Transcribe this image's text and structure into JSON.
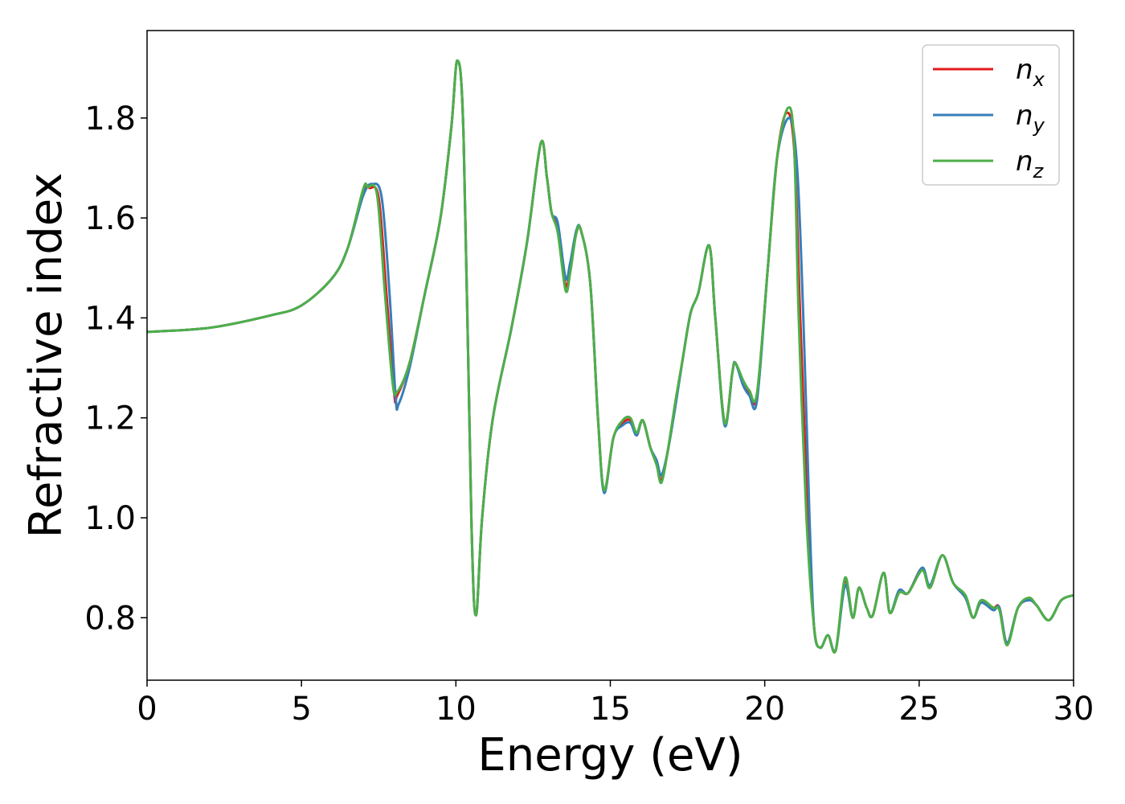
{
  "chart_data": {
    "type": "line",
    "title": "",
    "xlabel": "Energy (eV)",
    "ylabel": "Refractive index",
    "xlim": [
      0,
      30
    ],
    "ylim": [
      0.675,
      1.975
    ],
    "xticks": [
      0,
      5,
      10,
      15,
      20,
      25,
      30
    ],
    "xtick_labels": [
      "0",
      "5",
      "10",
      "15",
      "20",
      "25",
      "30"
    ],
    "yticks": [
      0.8,
      1.0,
      1.2,
      1.4,
      1.6,
      1.8
    ],
    "ytick_labels": [
      "0.8",
      "1.0",
      "1.2",
      "1.4",
      "1.6",
      "1.8"
    ],
    "grid": false,
    "legend_position": "top-right",
    "series": [
      {
        "name": "n_x",
        "label_main": "n",
        "label_sub": "x",
        "color": "#e41a1c",
        "points": [
          [
            0,
            1.372
          ],
          [
            2,
            1.38
          ],
          [
            4,
            1.405
          ],
          [
            5,
            1.425
          ],
          [
            6,
            1.48
          ],
          [
            6.5,
            1.54
          ],
          [
            7,
            1.655
          ],
          [
            7.2,
            1.66
          ],
          [
            7.5,
            1.64
          ],
          [
            7.75,
            1.45
          ],
          [
            8,
            1.25
          ],
          [
            8.1,
            1.245
          ],
          [
            8.5,
            1.31
          ],
          [
            9,
            1.45
          ],
          [
            9.5,
            1.6
          ],
          [
            9.85,
            1.78
          ],
          [
            10.05,
            1.915
          ],
          [
            10.25,
            1.76
          ],
          [
            10.5,
            1.0
          ],
          [
            10.65,
            0.805
          ],
          [
            10.85,
            1.0
          ],
          [
            11.2,
            1.2
          ],
          [
            11.8,
            1.38
          ],
          [
            12.3,
            1.55
          ],
          [
            12.75,
            1.75
          ],
          [
            12.95,
            1.68
          ],
          [
            13.1,
            1.61
          ],
          [
            13.3,
            1.58
          ],
          [
            13.55,
            1.465
          ],
          [
            13.7,
            1.5
          ],
          [
            13.9,
            1.57
          ],
          [
            14.05,
            1.575
          ],
          [
            14.35,
            1.47
          ],
          [
            14.6,
            1.2
          ],
          [
            14.8,
            1.055
          ],
          [
            15.1,
            1.16
          ],
          [
            15.4,
            1.19
          ],
          [
            15.65,
            1.195
          ],
          [
            15.85,
            1.165
          ],
          [
            16.05,
            1.195
          ],
          [
            16.3,
            1.14
          ],
          [
            16.5,
            1.11
          ],
          [
            16.65,
            1.075
          ],
          [
            16.85,
            1.13
          ],
          [
            17.1,
            1.225
          ],
          [
            17.35,
            1.32
          ],
          [
            17.6,
            1.41
          ],
          [
            17.85,
            1.45
          ],
          [
            18.2,
            1.545
          ],
          [
            18.4,
            1.4
          ],
          [
            18.7,
            1.19
          ],
          [
            18.95,
            1.29
          ],
          [
            19.05,
            1.31
          ],
          [
            19.3,
            1.27
          ],
          [
            19.5,
            1.25
          ],
          [
            19.75,
            1.245
          ],
          [
            20.1,
            1.5
          ],
          [
            20.4,
            1.72
          ],
          [
            20.7,
            1.81
          ],
          [
            20.95,
            1.74
          ],
          [
            21.15,
            1.4
          ],
          [
            21.4,
            1.0
          ],
          [
            21.6,
            0.78
          ],
          [
            21.8,
            0.74
          ],
          [
            22.05,
            0.765
          ],
          [
            22.3,
            0.735
          ],
          [
            22.6,
            0.875
          ],
          [
            22.85,
            0.8
          ],
          [
            23.05,
            0.86
          ],
          [
            23.3,
            0.82
          ],
          [
            23.5,
            0.805
          ],
          [
            23.85,
            0.89
          ],
          [
            24.05,
            0.81
          ],
          [
            24.35,
            0.85
          ],
          [
            24.65,
            0.85
          ],
          [
            25.1,
            0.9
          ],
          [
            25.35,
            0.86
          ],
          [
            25.75,
            0.925
          ],
          [
            26.1,
            0.87
          ],
          [
            26.5,
            0.84
          ],
          [
            26.75,
            0.8
          ],
          [
            27.0,
            0.83
          ],
          [
            27.4,
            0.82
          ],
          [
            27.6,
            0.82
          ],
          [
            27.85,
            0.75
          ],
          [
            28.2,
            0.82
          ],
          [
            28.55,
            0.835
          ],
          [
            28.8,
            0.825
          ],
          [
            29.2,
            0.795
          ],
          [
            29.6,
            0.835
          ],
          [
            30,
            0.845
          ]
        ]
      },
      {
        "name": "n_y",
        "label_main": "n",
        "label_sub": "y",
        "color": "#377eb8",
        "points": [
          [
            0,
            1.372
          ],
          [
            2,
            1.38
          ],
          [
            4,
            1.405
          ],
          [
            5,
            1.425
          ],
          [
            6,
            1.48
          ],
          [
            6.5,
            1.54
          ],
          [
            7,
            1.645
          ],
          [
            7.3,
            1.668
          ],
          [
            7.6,
            1.64
          ],
          [
            7.85,
            1.45
          ],
          [
            8.05,
            1.24
          ],
          [
            8.15,
            1.228
          ],
          [
            8.5,
            1.3
          ],
          [
            9,
            1.45
          ],
          [
            9.5,
            1.6
          ],
          [
            9.85,
            1.78
          ],
          [
            10.05,
            1.915
          ],
          [
            10.25,
            1.76
          ],
          [
            10.5,
            1.0
          ],
          [
            10.65,
            0.805
          ],
          [
            10.85,
            1.0
          ],
          [
            11.2,
            1.2
          ],
          [
            11.8,
            1.38
          ],
          [
            12.3,
            1.55
          ],
          [
            12.75,
            1.75
          ],
          [
            12.95,
            1.68
          ],
          [
            13.1,
            1.61
          ],
          [
            13.3,
            1.59
          ],
          [
            13.55,
            1.48
          ],
          [
            13.7,
            1.51
          ],
          [
            13.9,
            1.575
          ],
          [
            14.05,
            1.575
          ],
          [
            14.35,
            1.47
          ],
          [
            14.6,
            1.2
          ],
          [
            14.8,
            1.05
          ],
          [
            15.1,
            1.16
          ],
          [
            15.4,
            1.185
          ],
          [
            15.65,
            1.19
          ],
          [
            15.85,
            1.165
          ],
          [
            16.05,
            1.195
          ],
          [
            16.3,
            1.14
          ],
          [
            16.5,
            1.115
          ],
          [
            16.65,
            1.085
          ],
          [
            16.85,
            1.13
          ],
          [
            17.1,
            1.22
          ],
          [
            17.35,
            1.32
          ],
          [
            17.6,
            1.41
          ],
          [
            17.85,
            1.45
          ],
          [
            18.2,
            1.545
          ],
          [
            18.4,
            1.4
          ],
          [
            18.7,
            1.185
          ],
          [
            18.95,
            1.29
          ],
          [
            19.05,
            1.31
          ],
          [
            19.3,
            1.265
          ],
          [
            19.5,
            1.245
          ],
          [
            19.75,
            1.235
          ],
          [
            20.1,
            1.5
          ],
          [
            20.4,
            1.72
          ],
          [
            20.8,
            1.8
          ],
          [
            21.05,
            1.7
          ],
          [
            21.25,
            1.4
          ],
          [
            21.45,
            1.0
          ],
          [
            21.6,
            0.78
          ],
          [
            21.8,
            0.74
          ],
          [
            22.05,
            0.765
          ],
          [
            22.3,
            0.735
          ],
          [
            22.6,
            0.865
          ],
          [
            22.85,
            0.8
          ],
          [
            23.05,
            0.86
          ],
          [
            23.3,
            0.82
          ],
          [
            23.5,
            0.805
          ],
          [
            23.85,
            0.89
          ],
          [
            24.05,
            0.81
          ],
          [
            24.35,
            0.855
          ],
          [
            24.65,
            0.85
          ],
          [
            25.1,
            0.9
          ],
          [
            25.35,
            0.865
          ],
          [
            25.75,
            0.925
          ],
          [
            26.1,
            0.87
          ],
          [
            26.5,
            0.84
          ],
          [
            26.75,
            0.8
          ],
          [
            27.0,
            0.83
          ],
          [
            27.4,
            0.815
          ],
          [
            27.6,
            0.82
          ],
          [
            27.85,
            0.75
          ],
          [
            28.2,
            0.82
          ],
          [
            28.55,
            0.835
          ],
          [
            28.8,
            0.825
          ],
          [
            29.2,
            0.795
          ],
          [
            29.6,
            0.835
          ],
          [
            30,
            0.845
          ]
        ]
      },
      {
        "name": "n_z",
        "label_main": "n",
        "label_sub": "z",
        "color": "#4daf4a",
        "points": [
          [
            0,
            1.372
          ],
          [
            2,
            1.38
          ],
          [
            4,
            1.405
          ],
          [
            5,
            1.425
          ],
          [
            6,
            1.48
          ],
          [
            6.5,
            1.54
          ],
          [
            7,
            1.658
          ],
          [
            7.15,
            1.662
          ],
          [
            7.45,
            1.645
          ],
          [
            7.7,
            1.45
          ],
          [
            7.95,
            1.27
          ],
          [
            8.1,
            1.252
          ],
          [
            8.5,
            1.31
          ],
          [
            9,
            1.45
          ],
          [
            9.5,
            1.6
          ],
          [
            9.85,
            1.78
          ],
          [
            10.05,
            1.915
          ],
          [
            10.25,
            1.76
          ],
          [
            10.5,
            1.0
          ],
          [
            10.65,
            0.805
          ],
          [
            10.85,
            1.0
          ],
          [
            11.2,
            1.2
          ],
          [
            11.8,
            1.38
          ],
          [
            12.3,
            1.55
          ],
          [
            12.75,
            1.75
          ],
          [
            12.95,
            1.68
          ],
          [
            13.1,
            1.61
          ],
          [
            13.3,
            1.57
          ],
          [
            13.55,
            1.455
          ],
          [
            13.7,
            1.49
          ],
          [
            13.9,
            1.57
          ],
          [
            14.05,
            1.575
          ],
          [
            14.35,
            1.47
          ],
          [
            14.6,
            1.2
          ],
          [
            14.8,
            1.055
          ],
          [
            15.1,
            1.16
          ],
          [
            15.4,
            1.195
          ],
          [
            15.65,
            1.2
          ],
          [
            15.85,
            1.17
          ],
          [
            16.05,
            1.195
          ],
          [
            16.3,
            1.14
          ],
          [
            16.5,
            1.105
          ],
          [
            16.65,
            1.07
          ],
          [
            16.85,
            1.13
          ],
          [
            17.1,
            1.23
          ],
          [
            17.35,
            1.32
          ],
          [
            17.6,
            1.41
          ],
          [
            17.85,
            1.45
          ],
          [
            18.2,
            1.545
          ],
          [
            18.4,
            1.4
          ],
          [
            18.7,
            1.19
          ],
          [
            18.95,
            1.29
          ],
          [
            19.05,
            1.31
          ],
          [
            19.3,
            1.275
          ],
          [
            19.5,
            1.255
          ],
          [
            19.75,
            1.25
          ],
          [
            20.1,
            1.5
          ],
          [
            20.4,
            1.72
          ],
          [
            20.75,
            1.82
          ],
          [
            20.95,
            1.75
          ],
          [
            21.1,
            1.4
          ],
          [
            21.35,
            1.0
          ],
          [
            21.6,
            0.78
          ],
          [
            21.8,
            0.74
          ],
          [
            22.05,
            0.765
          ],
          [
            22.3,
            0.735
          ],
          [
            22.6,
            0.88
          ],
          [
            22.85,
            0.8
          ],
          [
            23.05,
            0.86
          ],
          [
            23.3,
            0.82
          ],
          [
            23.5,
            0.805
          ],
          [
            23.85,
            0.89
          ],
          [
            24.05,
            0.81
          ],
          [
            24.35,
            0.85
          ],
          [
            24.65,
            0.85
          ],
          [
            25.1,
            0.895
          ],
          [
            25.35,
            0.86
          ],
          [
            25.75,
            0.925
          ],
          [
            26.1,
            0.87
          ],
          [
            26.5,
            0.845
          ],
          [
            26.75,
            0.8
          ],
          [
            27.0,
            0.835
          ],
          [
            27.4,
            0.82
          ],
          [
            27.6,
            0.815
          ],
          [
            27.85,
            0.745
          ],
          [
            28.2,
            0.82
          ],
          [
            28.55,
            0.84
          ],
          [
            28.8,
            0.825
          ],
          [
            29.2,
            0.795
          ],
          [
            29.6,
            0.835
          ],
          [
            30,
            0.845
          ]
        ]
      }
    ]
  }
}
